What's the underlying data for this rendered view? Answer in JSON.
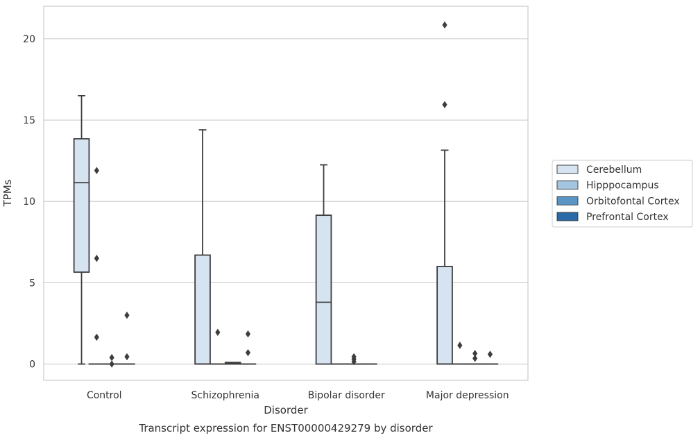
{
  "chart_data": {
    "type": "box",
    "title": "",
    "caption": "Transcript expression for ENST00000429279 by disorder",
    "xlabel": "Disorder",
    "ylabel": "TPMs",
    "ylim": [
      -1,
      22
    ],
    "yticks": [
      0,
      5,
      10,
      15,
      20
    ],
    "grid": "horizontal",
    "legend_position": "right",
    "categories": [
      "Control",
      "Schizophrenia",
      "Bipolar disorder",
      "Major depression"
    ],
    "series": [
      {
        "name": "Cerebellum",
        "color": "#d6e3f0",
        "boxes": [
          {
            "min": 0,
            "q1": 5.65,
            "median": 11.15,
            "q3": 13.85,
            "max": 16.5,
            "outliers": []
          },
          {
            "min": 0,
            "q1": 0,
            "median": 0,
            "q3": 6.7,
            "max": 14.4,
            "outliers": []
          },
          {
            "min": 0,
            "q1": 0,
            "median": 3.8,
            "q3": 9.15,
            "max": 12.25,
            "outliers": []
          },
          {
            "min": 0,
            "q1": 0,
            "median": 0,
            "q3": 6.0,
            "max": 13.15,
            "outliers": [
              15.95,
              20.85
            ]
          }
        ]
      },
      {
        "name": "Hipppocampus",
        "color": "#a3c5df",
        "boxes": [
          {
            "min": 0,
            "q1": 0,
            "median": 0,
            "q3": 0,
            "max": 0,
            "outliers": [
              11.9,
              6.5,
              1.65
            ]
          },
          {
            "min": 0,
            "q1": 0,
            "median": 0,
            "q3": 0,
            "max": 0,
            "outliers": [
              1.95
            ]
          },
          {
            "min": 0,
            "q1": 0,
            "median": 0,
            "q3": 0,
            "max": 0,
            "outliers": []
          },
          {
            "min": 0,
            "q1": 0,
            "median": 0,
            "q3": 0,
            "max": 0,
            "outliers": [
              1.15
            ]
          }
        ]
      },
      {
        "name": "Orbitofontal Cortex",
        "color": "#5a96c5",
        "boxes": [
          {
            "min": 0,
            "q1": 0,
            "median": 0,
            "q3": 0,
            "max": 0,
            "outliers": [
              0.4,
              0.0
            ]
          },
          {
            "min": 0,
            "q1": 0,
            "median": 0.05,
            "q3": 0.1,
            "max": 0.1,
            "outliers": []
          },
          {
            "min": 0,
            "q1": 0,
            "median": 0,
            "q3": 0,
            "max": 0,
            "outliers": [
              0.45,
              0.3,
              0.15
            ]
          },
          {
            "min": 0,
            "q1": 0,
            "median": 0,
            "q3": 0,
            "max": 0,
            "outliers": [
              0.65,
              0.35
            ]
          }
        ]
      },
      {
        "name": "Prefrontal Cortex",
        "color": "#2a6aa8",
        "boxes": [
          {
            "min": 0,
            "q1": 0,
            "median": 0,
            "q3": 0,
            "max": 0,
            "outliers": [
              3.0,
              0.45
            ]
          },
          {
            "min": 0,
            "q1": 0,
            "median": 0,
            "q3": 0,
            "max": 0,
            "outliers": [
              1.85,
              0.7
            ]
          },
          {
            "min": 0,
            "q1": 0,
            "median": 0,
            "q3": 0,
            "max": 0,
            "outliers": []
          },
          {
            "min": 0,
            "q1": 0,
            "median": 0,
            "q3": 0,
            "max": 0,
            "outliers": [
              0.6
            ]
          }
        ]
      }
    ]
  }
}
